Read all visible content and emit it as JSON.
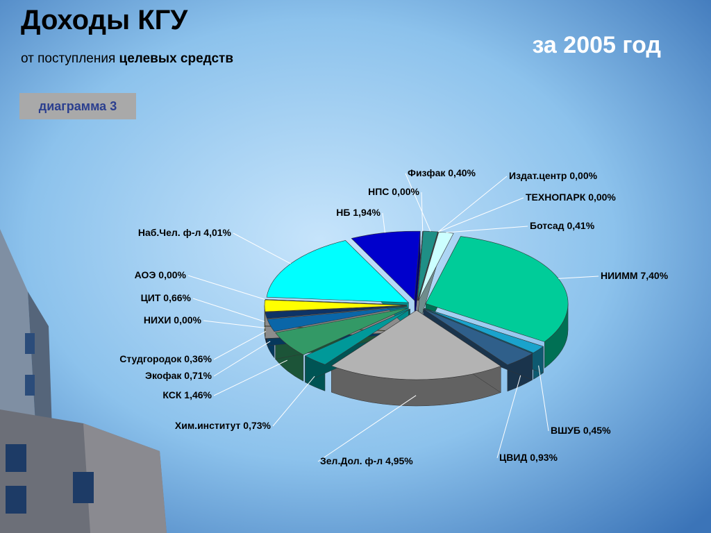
{
  "header": {
    "title": "Доходы КГУ",
    "subtitle_plain": "от поступления",
    "subtitle_bold": "целевых средств",
    "period": "за 2005 год",
    "badge": "диаграмма 3"
  },
  "chart_data": {
    "type": "pie",
    "categories": [
      "Физфак",
      "Издат.центр",
      "ТЕХНОПАРК",
      "Ботсад",
      "НИИММ",
      "ВШУБ",
      "ЦВИД",
      "Зел.Дол. ф-л",
      "Хим.институт",
      "КСК",
      "Экофак",
      "Студгородок",
      "НИХИ",
      "ЦИТ",
      "АОЭ",
      "Наб.Чел. ф-л",
      "НБ",
      "НПС"
    ],
    "values": [
      0.4,
      0.0,
      0.0,
      0.41,
      7.4,
      0.45,
      0.93,
      4.95,
      0.73,
      1.46,
      0.71,
      0.36,
      0.0,
      0.66,
      0.0,
      4.01,
      1.94,
      0.0
    ],
    "value_labels": [
      "0,40%",
      "0,00%",
      "0,00%",
      "0,41%",
      "7,40%",
      "0,45%",
      "0,93%",
      "4,95%",
      "0,73%",
      "1,46%",
      "0,71%",
      "0,36%",
      "0,00%",
      "0,66%",
      "0,00%",
      "4,01%",
      "1,94%",
      "0,00%"
    ],
    "colors": [
      "#1f8f86",
      "#ffffff",
      "#ffffff",
      "#ccffff",
      "#00cc99",
      "#1aa3cc",
      "#2f5f8a",
      "#b3b3b3",
      "#009999",
      "#339966",
      "#0a66a8",
      "#0d3366",
      "#ffffff",
      "#ffff00",
      "#ffffff",
      "#00ffff",
      "#0000cc",
      "#ffffff"
    ]
  }
}
